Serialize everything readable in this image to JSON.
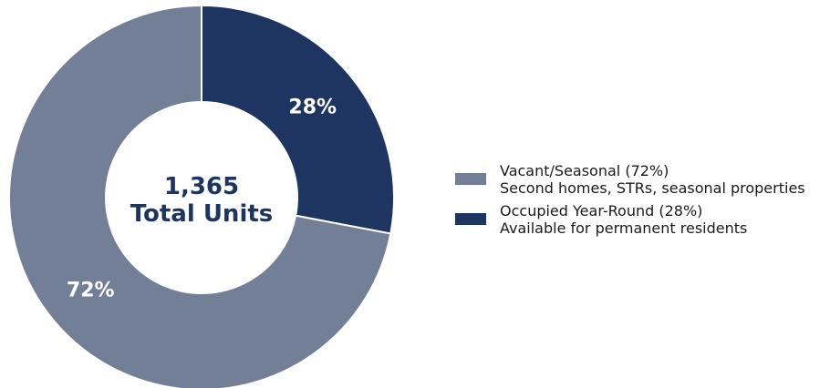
{
  "chart_data": {
    "type": "pie",
    "donut": true,
    "center_label": {
      "line1": "1,365",
      "line2": "Total Units"
    },
    "slices": [
      {
        "name": "Occupied Year-Round (28%)",
        "description": "Available for permanent residents",
        "value": 28,
        "label": "28%",
        "color": "#1d3560"
      },
      {
        "name": "Vacant/Seasonal (72%)",
        "description": "Second homes, STRs, seasonal properties",
        "value": 72,
        "label": "72%",
        "color": "#737f96"
      }
    ],
    "legend": {
      "placement": "right",
      "items": [
        {
          "title": "Vacant/Seasonal (72%)",
          "subtitle": "Second homes, STRs, seasonal properties",
          "color": "#737f96"
        },
        {
          "title": "Occupied Year-Round (28%)",
          "subtitle": "Available for permanent residents",
          "color": "#1d3560"
        }
      ]
    }
  }
}
